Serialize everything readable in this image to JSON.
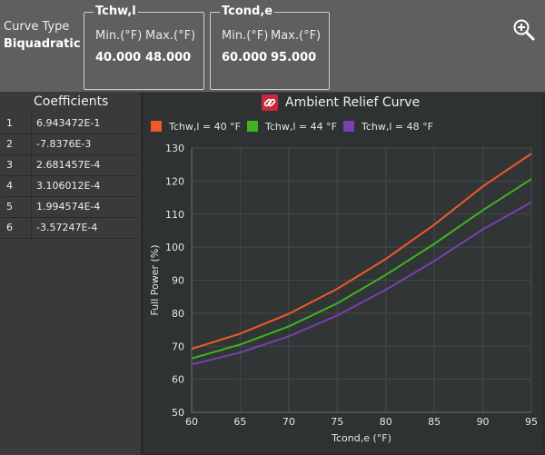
{
  "curve_type": {
    "label": "Curve Type",
    "value": "Biquadratic"
  },
  "tchw": {
    "title": "Tchw,l",
    "min_label": "Min.(°F)",
    "max_label": "Max.(°F)",
    "min": "40.000",
    "max": "48.000"
  },
  "tcond": {
    "title": "Tcond,e",
    "min_label": "Min.(°F)",
    "max_label": "Max.(°F)",
    "min": "60.000",
    "max": "95.000"
  },
  "icons": {
    "zoom": "zoom-in-icon",
    "link": "link-icon"
  },
  "coefficients": {
    "title": "Coefficients",
    "rows": [
      {
        "index": "1",
        "value": "6.943472E-1"
      },
      {
        "index": "2",
        "value": "-7.8376E-3"
      },
      {
        "index": "3",
        "value": "2.681457E-4"
      },
      {
        "index": "4",
        "value": "3.106012E-4"
      },
      {
        "index": "5",
        "value": "1.994574E-4"
      },
      {
        "index": "6",
        "value": "-3.57247E-4"
      }
    ]
  },
  "colors": {
    "series1": "#f05a28",
    "series2": "#3cb521",
    "series3": "#7a3fb0"
  },
  "chart_data": {
    "type": "line",
    "title": "Ambient Relief Curve",
    "xlabel": "Tcond,e (°F)",
    "ylabel": "Full Power (%)",
    "xlim": [
      60,
      95
    ],
    "ylim": [
      50,
      130
    ],
    "x_ticks": [
      60,
      65,
      70,
      75,
      80,
      85,
      90,
      95
    ],
    "y_ticks": [
      50,
      60,
      70,
      80,
      90,
      100,
      110,
      120,
      130
    ],
    "grid": true,
    "legend_position": "top",
    "x": [
      60,
      65,
      70,
      75,
      80,
      85,
      90,
      95
    ],
    "series": [
      {
        "name": "Tchw,l  =  40 °F",
        "color": "#f05a28",
        "values": [
          69.2,
          73.8,
          79.8,
          87.4,
          96.4,
          106.8,
          118.4,
          128.3
        ]
      },
      {
        "name": "Tchw,l  =  44 °F",
        "color": "#3cb521",
        "values": [
          66.3,
          70.5,
          76.0,
          83.0,
          91.6,
          101.0,
          111.2,
          120.6
        ]
      },
      {
        "name": "Tchw,l  =  48 °F",
        "color": "#7a3fb0",
        "values": [
          64.5,
          68.1,
          73.0,
          79.3,
          87.1,
          95.8,
          105.4,
          113.6
        ]
      }
    ]
  }
}
